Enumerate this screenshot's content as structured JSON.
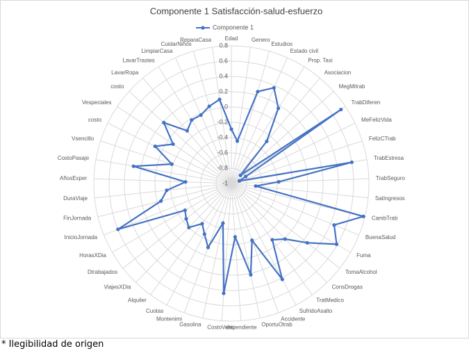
{
  "chart_data": {
    "type": "radar",
    "title": "Componente 1 Satisfacción-salud-esfuerzo",
    "categories": [
      "Edad",
      "Genero",
      "Estudios",
      "Estado civil",
      "Prop. Taxi",
      "Asociacion",
      "MegMitrab",
      "TrabDiferen",
      "MeFelizVida",
      "FelizCTrab",
      "TrabEstresa",
      "TrabSeguro",
      "SatIngresos",
      "CambTrab",
      "BuenaSalud",
      "Fuma",
      "TomaAlcohol",
      "ConsDrogas",
      "TratMedico",
      "SufridoAsalto",
      "Accidente",
      "OportuOtrab",
      "dependiente",
      "CostoVehic",
      "Gasolina",
      "Montenimi",
      "Cuotas",
      "Alquiler",
      "ViajesXDia",
      "Dtrabajados",
      "HorasXDia",
      "InicioJornada",
      "FinJornada",
      "DuraViaje",
      "AñosExper",
      "CostoPasaje",
      "Vsencillo",
      "costo",
      "Vespeciales",
      "costo",
      "LavarRopa",
      "LavarTrastes",
      "LimpiarCasa",
      "CuidarNiños",
      "ReparaCasa"
    ],
    "series": [
      {
        "name": "Componente 1",
        "color": "#4472c4",
        "values": [
          -0.29,
          -0.44,
          0.25,
          0.37,
          0.16,
          -0.28,
          -0.84,
          0.73,
          -0.79,
          -0.89,
          0.6,
          -0.38,
          -0.68,
          0.78,
          0.45,
          0.59,
          0.26,
          0.01,
          -0.09,
          0.42,
          -0.21,
          0.22,
          -0.3,
          0.44,
          -0.47,
          -0.11,
          -0.25,
          -0.35,
          -0.2,
          -0.25,
          -0.3,
          0.6,
          -0.05,
          -0.15,
          -0.4,
          0.3,
          -0.18,
          0.11,
          -0.08,
          0.19,
          -0.1,
          -0.02,
          -0.02,
          0.05,
          0.11
        ]
      }
    ],
    "ylim": [
      -1,
      0.8
    ],
    "yticks": [
      -1,
      -0.8,
      -0.6,
      -0.4,
      -0.2,
      0,
      0.2,
      0.4,
      0.6,
      0.8
    ],
    "grid": true,
    "legend": "top"
  },
  "footnote": "* Ilegibilidad de origen"
}
